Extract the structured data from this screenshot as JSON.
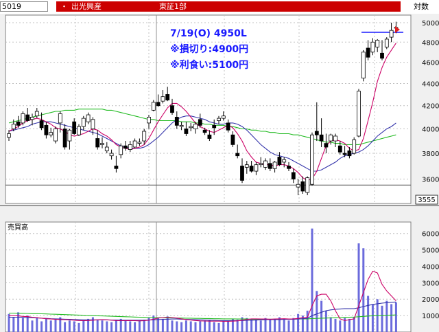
{
  "header": {
    "code": "5019",
    "bullet": "・",
    "company": "出光興産",
    "market": "東証1部",
    "scale": "対数"
  },
  "price_tag": "3555",
  "colors": {
    "up_candle": "#ffffff",
    "down_candle": "#000000",
    "ma_short": "#cc0066",
    "ma_mid": "#3333aa",
    "ma_long": "#22bb22",
    "volume": "#6b6bdc",
    "annotation": "#1a1aff",
    "arrow": "#e02020",
    "header_bar": "#cc0000"
  },
  "chart_data": [
    {
      "type": "candlestick",
      "scale": "log",
      "annotations": [
        "7/19(O) 4950L",
        "※損切り:4900円",
        "※利食い:5100円"
      ],
      "level_lines": [
        4900,
        3555
      ],
      "y_ticks": [
        3600,
        3800,
        4000,
        4200,
        4400,
        4600,
        4800,
        5000
      ],
      "ylim": [
        3420,
        5080
      ],
      "ohlc": [
        [
          3930,
          3990,
          3900,
          3960
        ],
        [
          4000,
          4080,
          3980,
          4040
        ],
        [
          4060,
          4110,
          4010,
          4030
        ],
        [
          4050,
          4150,
          4030,
          4130
        ],
        [
          4120,
          4180,
          4060,
          4070
        ],
        [
          4080,
          4130,
          4030,
          4100
        ],
        [
          4110,
          4180,
          4090,
          4150
        ],
        [
          4070,
          4140,
          3990,
          4010
        ],
        [
          4030,
          4060,
          3920,
          3950
        ],
        [
          3950,
          4010,
          3930,
          3970
        ],
        [
          3900,
          4020,
          3880,
          4000
        ],
        [
          4050,
          4150,
          3970,
          4130
        ],
        [
          4000,
          4040,
          3830,
          3850
        ],
        [
          3900,
          4000,
          3830,
          3990
        ],
        [
          4060,
          4090,
          3950,
          3960
        ],
        [
          3950,
          4040,
          3940,
          4020
        ],
        [
          4020,
          4110,
          3990,
          4090
        ],
        [
          4060,
          4140,
          4040,
          4120
        ],
        [
          4000,
          4100,
          3950,
          4080
        ],
        [
          3920,
          3990,
          3830,
          3850
        ],
        [
          3870,
          3930,
          3840,
          3880
        ],
        [
          3820,
          3890,
          3800,
          3850
        ],
        [
          3780,
          3830,
          3750,
          3800
        ],
        [
          3700,
          3780,
          3650,
          3680
        ],
        [
          3790,
          3880,
          3760,
          3860
        ],
        [
          3860,
          3900,
          3820,
          3840
        ],
        [
          3830,
          3900,
          3810,
          3870
        ],
        [
          3850,
          3920,
          3840,
          3900
        ],
        [
          3880,
          3920,
          3860,
          3890
        ],
        [
          3900,
          4000,
          3870,
          3980
        ],
        [
          4050,
          4120,
          4000,
          4100
        ],
        [
          4160,
          4250,
          4150,
          4230
        ],
        [
          4230,
          4300,
          4190,
          4200
        ],
        [
          4240,
          4340,
          4220,
          4280
        ],
        [
          4300,
          4370,
          4240,
          4250
        ],
        [
          4200,
          4260,
          4120,
          4140
        ],
        [
          4100,
          4150,
          4000,
          4030
        ],
        [
          4020,
          4060,
          3990,
          4030
        ],
        [
          4000,
          4060,
          3940,
          3960
        ],
        [
          4010,
          4050,
          3980,
          4020
        ],
        [
          4000,
          4060,
          3960,
          4040
        ],
        [
          4080,
          4130,
          4010,
          4030
        ],
        [
          3990,
          4010,
          3950,
          3970
        ],
        [
          3950,
          3990,
          3900,
          3920
        ],
        [
          4030,
          4080,
          3950,
          4010
        ],
        [
          4070,
          4110,
          4040,
          4090
        ],
        [
          4090,
          4150,
          4070,
          4110
        ],
        [
          4050,
          4080,
          3970,
          3990
        ],
        [
          3950,
          3980,
          3850,
          3870
        ],
        [
          3800,
          3870,
          3760,
          3780
        ],
        [
          3700,
          3760,
          3570,
          3590
        ],
        [
          3690,
          3740,
          3640,
          3710
        ],
        [
          3700,
          3740,
          3650,
          3660
        ],
        [
          3660,
          3730,
          3630,
          3710
        ],
        [
          3710,
          3770,
          3690,
          3720
        ],
        [
          3690,
          3760,
          3670,
          3740
        ],
        [
          3720,
          3760,
          3660,
          3680
        ],
        [
          3680,
          3740,
          3650,
          3730
        ],
        [
          3770,
          3810,
          3700,
          3710
        ],
        [
          3730,
          3770,
          3690,
          3750
        ],
        [
          3700,
          3730,
          3660,
          3680
        ],
        [
          3650,
          3680,
          3570,
          3600
        ],
        [
          3540,
          3600,
          3480,
          3560
        ],
        [
          3580,
          3620,
          3490,
          3510
        ],
        [
          3500,
          3620,
          3480,
          3610
        ],
        [
          3560,
          3970,
          3550,
          3950
        ],
        [
          3980,
          4230,
          3900,
          3950
        ],
        [
          3950,
          4090,
          3850,
          3900
        ],
        [
          3880,
          3960,
          3800,
          3850
        ],
        [
          3900,
          3960,
          3870,
          3950
        ],
        [
          3900,
          3960,
          3850,
          3940
        ],
        [
          3860,
          3900,
          3790,
          3810
        ],
        [
          3800,
          3860,
          3770,
          3790
        ],
        [
          3820,
          3850,
          3760,
          3780
        ],
        [
          3800,
          3930,
          3790,
          3910
        ],
        [
          3940,
          4350,
          3930,
          4330
        ],
        [
          4450,
          4720,
          4420,
          4700
        ],
        [
          4740,
          4820,
          4620,
          4650
        ],
        [
          4700,
          4840,
          4670,
          4800
        ],
        [
          4750,
          4830,
          4700,
          4820
        ],
        [
          4690,
          4820,
          4620,
          4640
        ],
        [
          4750,
          4850,
          4730,
          4830
        ],
        [
          4850,
          5000,
          4800,
          4920
        ],
        [
          4950,
          5010,
          4890,
          4950
        ]
      ],
      "ma_short": [
        3980,
        4000,
        4020,
        4050,
        4070,
        4080,
        4090,
        4080,
        4060,
        4040,
        4010,
        4000,
        3980,
        3950,
        3940,
        3950,
        3960,
        3980,
        4000,
        3990,
        3960,
        3940,
        3910,
        3870,
        3850,
        3840,
        3830,
        3840,
        3850,
        3870,
        3920,
        3990,
        4060,
        4120,
        4180,
        4220,
        4220,
        4190,
        4150,
        4100,
        4050,
        4020,
        4000,
        3980,
        3970,
        3990,
        4010,
        4030,
        4010,
        3960,
        3900,
        3820,
        3770,
        3730,
        3720,
        3710,
        3710,
        3700,
        3710,
        3710,
        3700,
        3680,
        3650,
        3610,
        3590,
        3600,
        3660,
        3760,
        3860,
        3900,
        3910,
        3900,
        3880,
        3840,
        3820,
        3830,
        3920,
        4070,
        4230,
        4420,
        4550,
        4650,
        4720,
        4790
      ],
      "ma_mid": [
        3980,
        3990,
        4000,
        4010,
        4020,
        4040,
        4050,
        4060,
        4060,
        4060,
        4050,
        4040,
        4030,
        4020,
        4010,
        4000,
        3990,
        3980,
        3970,
        3960,
        3940,
        3920,
        3900,
        3880,
        3860,
        3850,
        3840,
        3840,
        3840,
        3850,
        3870,
        3900,
        3930,
        3970,
        4010,
        4050,
        4080,
        4100,
        4110,
        4110,
        4100,
        4090,
        4080,
        4060,
        4050,
        4040,
        4040,
        4050,
        4050,
        4040,
        4020,
        3990,
        3950,
        3910,
        3870,
        3840,
        3810,
        3790,
        3780,
        3770,
        3760,
        3740,
        3720,
        3700,
        3680,
        3660,
        3660,
        3670,
        3690,
        3710,
        3730,
        3760,
        3780,
        3790,
        3800,
        3810,
        3830,
        3860,
        3900,
        3940,
        3970,
        4000,
        4020,
        4050
      ],
      "ma_long": [
        4050,
        4060,
        4070,
        4080,
        4090,
        4100,
        4110,
        4120,
        4130,
        4140,
        4150,
        4150,
        4160,
        4160,
        4160,
        4170,
        4170,
        4170,
        4170,
        4170,
        4170,
        4160,
        4160,
        4150,
        4140,
        4130,
        4120,
        4110,
        4100,
        4090,
        4080,
        4080,
        4070,
        4070,
        4070,
        4070,
        4070,
        4060,
        4060,
        4060,
        4050,
        4050,
        4040,
        4040,
        4030,
        4030,
        4030,
        4020,
        4020,
        4010,
        4000,
        4000,
        3990,
        3990,
        3980,
        3980,
        3970,
        3970,
        3960,
        3960,
        3960,
        3950,
        3950,
        3940,
        3930,
        3920,
        3910,
        3900,
        3890,
        3890,
        3880,
        3880,
        3870,
        3870,
        3870,
        3870,
        3880,
        3890,
        3900,
        3910,
        3920,
        3930,
        3940,
        3950
      ]
    },
    {
      "type": "bar",
      "title": "売買高",
      "y_ticks": [
        1000,
        2000,
        3000,
        4000,
        5000,
        6000
      ],
      "ylim": [
        0,
        6700
      ],
      "values": [
        1100,
        900,
        1200,
        850,
        1000,
        700,
        900,
        650,
        800,
        700,
        750,
        900,
        600,
        700,
        650,
        550,
        700,
        800,
        900,
        750,
        700,
        650,
        600,
        750,
        800,
        700,
        650,
        600,
        700,
        750,
        900,
        1000,
        850,
        800,
        950,
        700,
        650,
        600,
        700,
        650,
        600,
        650,
        700,
        750,
        600,
        550,
        650,
        700,
        800,
        750,
        900,
        850,
        800,
        750,
        700,
        850,
        800,
        750,
        900,
        800,
        700,
        850,
        1100,
        1000,
        1300,
        6300,
        2500,
        1900,
        1300,
        900,
        800,
        700,
        850,
        800,
        900,
        5400,
        5100,
        2200,
        1700,
        2000,
        1600,
        1900,
        1700,
        1800
      ],
      "ma_short": [
        1000,
        1000,
        980,
        950,
        940,
        900,
        870,
        840,
        810,
        790,
        770,
        760,
        750,
        740,
        720,
        700,
        690,
        700,
        720,
        740,
        750,
        740,
        720,
        700,
        690,
        690,
        700,
        690,
        680,
        690,
        720,
        780,
        850,
        880,
        900,
        880,
        850,
        800,
        760,
        730,
        700,
        680,
        670,
        660,
        660,
        660,
        650,
        650,
        660,
        680,
        720,
        760,
        800,
        800,
        790,
        790,
        780,
        790,
        800,
        810,
        790,
        800,
        830,
        870,
        900,
        1600,
        2200,
        2300,
        2300,
        1900,
        1300,
        800,
        700,
        750,
        800,
        1600,
        2400,
        3200,
        3700,
        3600,
        2900,
        2500,
        2200,
        1900
      ],
      "ma_mid": [
        900,
        900,
        900,
        890,
        880,
        870,
        860,
        840,
        830,
        810,
        800,
        790,
        780,
        770,
        760,
        750,
        740,
        740,
        740,
        740,
        740,
        740,
        730,
        730,
        720,
        720,
        720,
        720,
        720,
        720,
        730,
        740,
        760,
        770,
        780,
        790,
        790,
        780,
        770,
        760,
        750,
        740,
        730,
        720,
        710,
        700,
        690,
        690,
        690,
        690,
        700,
        710,
        720,
        730,
        740,
        750,
        760,
        760,
        760,
        770,
        770,
        780,
        790,
        810,
        830,
        1000,
        1100,
        1200,
        1300,
        1350,
        1380,
        1400,
        1420,
        1420,
        1420,
        1480,
        1550,
        1620,
        1680,
        1720,
        1760,
        1790,
        1810,
        1830
      ],
      "ma_long": [
        1150,
        1150,
        1140,
        1140,
        1130,
        1120,
        1120,
        1110,
        1100,
        1090,
        1080,
        1070,
        1060,
        1050,
        1040,
        1030,
        1020,
        1010,
        1000,
        990,
        980,
        970,
        960,
        950,
        940,
        930,
        920,
        910,
        900,
        890,
        880,
        880,
        870,
        870,
        860,
        860,
        850,
        850,
        840,
        840,
        830,
        830,
        820,
        820,
        810,
        810,
        800,
        800,
        800,
        790,
        790,
        790,
        780,
        780,
        780,
        780,
        780,
        780,
        780,
        790,
        790,
        790,
        790,
        800,
        800,
        820,
        830,
        840,
        850,
        860,
        870,
        880,
        890,
        900,
        910,
        930,
        950,
        970,
        990,
        1000,
        1010,
        1020,
        1030,
        1040
      ]
    }
  ]
}
